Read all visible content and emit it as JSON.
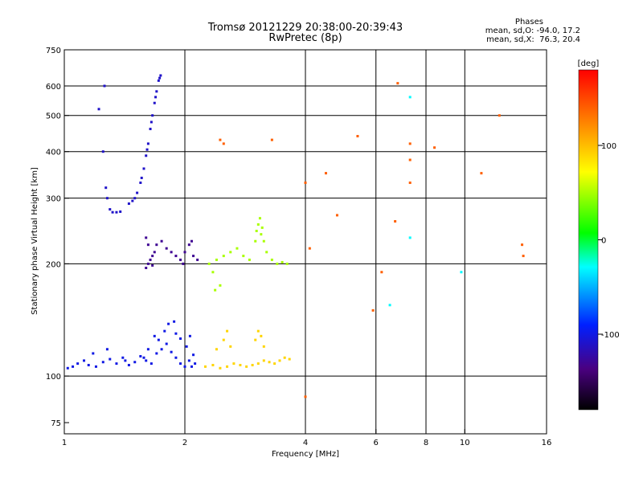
{
  "chart_data": {
    "type": "scatter",
    "title": "Tromsø 20121229 20:38:00-20:39:43",
    "subtitle": "RwPretec (8p)",
    "xlabel": "Frequency [MHz]",
    "ylabel": "Stationary phase Virtual Height [km]",
    "x_scale": "log",
    "y_scale": "log",
    "xlim": [
      1,
      16
    ],
    "ylim": [
      70,
      750
    ],
    "x_ticks": [
      1,
      2,
      4,
      6,
      8,
      10,
      16
    ],
    "x_tick_labels": [
      "1",
      "2",
      "4",
      "6",
      "8",
      "10",
      "16"
    ],
    "y_ticks": [
      75,
      100,
      200,
      300,
      400,
      500,
      600,
      750
    ],
    "y_tick_labels": [
      "75",
      "100",
      "200",
      "300",
      "400",
      "500",
      "600",
      "750"
    ],
    "grid": true,
    "stats_label": "Phases",
    "stats_line_O": "mean, sd,O: -94.0, 17.2",
    "stats_line_X": "mean, sd,X:  76.3, 20.4",
    "colorbar": {
      "label": "[deg]",
      "range": [
        -180,
        180
      ],
      "ticks": [
        -100,
        0,
        100
      ],
      "tick_labels": [
        "-100",
        "0",
        "100"
      ]
    },
    "groups": [
      {
        "name": "blue-low-band",
        "phase": -100,
        "points": [
          [
            1.02,
            105
          ],
          [
            1.05,
            106
          ],
          [
            1.08,
            108
          ],
          [
            1.12,
            110
          ],
          [
            1.15,
            107
          ],
          [
            1.2,
            106
          ],
          [
            1.25,
            109
          ],
          [
            1.3,
            111
          ],
          [
            1.35,
            108
          ],
          [
            1.4,
            112
          ],
          [
            1.45,
            107
          ],
          [
            1.5,
            109
          ],
          [
            1.55,
            113
          ],
          [
            1.6,
            110
          ],
          [
            1.65,
            108
          ],
          [
            1.7,
            115
          ],
          [
            1.75,
            118
          ],
          [
            1.8,
            122
          ],
          [
            1.85,
            116
          ],
          [
            1.9,
            112
          ],
          [
            1.95,
            108
          ],
          [
            2.0,
            106
          ],
          [
            2.05,
            110
          ],
          [
            2.1,
            114
          ],
          [
            1.72,
            125
          ],
          [
            1.78,
            132
          ],
          [
            1.82,
            138
          ],
          [
            1.9,
            130
          ],
          [
            2.02,
            120
          ],
          [
            1.68,
            128
          ],
          [
            1.62,
            118
          ],
          [
            1.58,
            112
          ],
          [
            2.08,
            106
          ],
          [
            2.12,
            108
          ],
          [
            1.18,
            115
          ],
          [
            1.28,
            118
          ],
          [
            1.42,
            110
          ],
          [
            1.88,
            140
          ],
          [
            1.95,
            126
          ],
          [
            2.06,
            128
          ]
        ]
      },
      {
        "name": "blue-F-trace",
        "phase": -110,
        "points": [
          [
            1.45,
            290
          ],
          [
            1.48,
            295
          ],
          [
            1.5,
            300
          ],
          [
            1.52,
            310
          ],
          [
            1.55,
            330
          ],
          [
            1.58,
            360
          ],
          [
            1.6,
            390
          ],
          [
            1.62,
            420
          ],
          [
            1.64,
            460
          ],
          [
            1.66,
            500
          ],
          [
            1.68,
            540
          ],
          [
            1.7,
            580
          ],
          [
            1.72,
            620
          ],
          [
            1.74,
            640
          ],
          [
            1.56,
            340
          ],
          [
            1.61,
            405
          ],
          [
            1.65,
            480
          ],
          [
            1.69,
            560
          ],
          [
            1.73,
            630
          ],
          [
            1.3,
            280
          ],
          [
            1.32,
            275
          ],
          [
            1.35,
            275
          ],
          [
            1.38,
            276
          ],
          [
            1.28,
            300
          ],
          [
            1.27,
            320
          ],
          [
            1.25,
            400
          ],
          [
            1.22,
            520
          ],
          [
            1.26,
            600
          ]
        ]
      },
      {
        "name": "purple-F1",
        "phase": -130,
        "points": [
          [
            1.6,
            195
          ],
          [
            1.62,
            200
          ],
          [
            1.64,
            205
          ],
          [
            1.66,
            210
          ],
          [
            1.68,
            215
          ],
          [
            1.7,
            225
          ],
          [
            1.75,
            230
          ],
          [
            1.8,
            220
          ],
          [
            1.85,
            215
          ],
          [
            1.9,
            210
          ],
          [
            1.95,
            205
          ],
          [
            2.0,
            215
          ],
          [
            2.05,
            225
          ],
          [
            2.1,
            210
          ],
          [
            2.15,
            205
          ],
          [
            1.62,
            225
          ],
          [
            1.6,
            235
          ],
          [
            1.66,
            198
          ],
          [
            1.98,
            200
          ],
          [
            2.08,
            230
          ]
        ]
      },
      {
        "name": "yellow-low-band",
        "phase": 90,
        "points": [
          [
            2.25,
            106
          ],
          [
            2.35,
            107
          ],
          [
            2.45,
            105
          ],
          [
            2.55,
            106
          ],
          [
            2.65,
            108
          ],
          [
            2.75,
            107
          ],
          [
            2.85,
            106
          ],
          [
            2.95,
            107
          ],
          [
            3.05,
            108
          ],
          [
            3.15,
            110
          ],
          [
            3.25,
            109
          ],
          [
            3.35,
            108
          ],
          [
            3.45,
            110
          ],
          [
            3.55,
            112
          ],
          [
            3.65,
            111
          ],
          [
            2.4,
            118
          ],
          [
            2.5,
            125
          ],
          [
            2.55,
            132
          ],
          [
            2.6,
            120
          ],
          [
            3.0,
            125
          ],
          [
            3.05,
            132
          ],
          [
            3.1,
            128
          ],
          [
            3.15,
            120
          ]
        ]
      },
      {
        "name": "green-F1",
        "phase": 50,
        "points": [
          [
            2.3,
            200
          ],
          [
            2.35,
            190
          ],
          [
            2.4,
            205
          ],
          [
            2.5,
            210
          ],
          [
            2.6,
            215
          ],
          [
            2.7,
            220
          ],
          [
            2.8,
            210
          ],
          [
            2.9,
            205
          ],
          [
            3.0,
            230
          ],
          [
            3.02,
            245
          ],
          [
            3.05,
            255
          ],
          [
            3.1,
            240
          ],
          [
            3.15,
            230
          ],
          [
            3.2,
            215
          ],
          [
            3.3,
            205
          ],
          [
            3.4,
            200
          ],
          [
            3.5,
            202
          ],
          [
            3.6,
            200
          ],
          [
            3.08,
            265
          ],
          [
            3.12,
            250
          ],
          [
            2.45,
            175
          ],
          [
            2.38,
            170
          ]
        ]
      },
      {
        "name": "scattered",
        "phase": 140,
        "points": [
          [
            2.45,
            430
          ],
          [
            2.5,
            420
          ],
          [
            3.3,
            430
          ],
          [
            4.0,
            330
          ],
          [
            4.1,
            220
          ],
          [
            4.5,
            350
          ],
          [
            4.8,
            270
          ],
          [
            5.4,
            440
          ],
          [
            5.9,
            150
          ],
          [
            6.2,
            190
          ],
          [
            6.7,
            260
          ],
          [
            6.8,
            610
          ],
          [
            7.3,
            420
          ],
          [
            7.3,
            330
          ],
          [
            7.3,
            380
          ],
          [
            8.4,
            410
          ],
          [
            11.0,
            350
          ],
          [
            12.2,
            500
          ],
          [
            13.9,
            225
          ],
          [
            14.0,
            210
          ],
          [
            4.0,
            88
          ]
        ]
      },
      {
        "name": "cyan-scattered",
        "phase": -30,
        "points": [
          [
            7.3,
            560
          ],
          [
            7.3,
            235
          ],
          [
            9.8,
            190
          ],
          [
            6.5,
            155
          ]
        ]
      }
    ]
  }
}
